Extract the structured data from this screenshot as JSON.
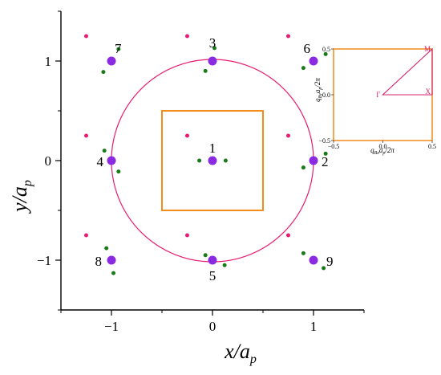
{
  "chart_data": [
    {
      "type": "scatter",
      "xlabel": "x/a",
      "xlabel_sub": "p",
      "ylabel": "y/a",
      "ylabel_sub": "p",
      "xlim": [
        -1.5,
        1.5
      ],
      "ylim": [
        -1.5,
        1.5
      ],
      "xticks": [
        -1,
        0,
        1
      ],
      "yticks": [
        -1,
        0,
        1
      ],
      "xtick_labels": [
        "−1",
        "0",
        "1"
      ],
      "ytick_labels": [
        "−1",
        "0",
        "1"
      ],
      "grid": false,
      "colors": {
        "sites": "#8a2be2",
        "pink_points": "#e61e73",
        "green_points": "#1a7a1a",
        "circle": "#e61e73",
        "square": "#f28c1a"
      },
      "circle": {
        "center": [
          0,
          0
        ],
        "radius": 1
      },
      "square": {
        "x": [
          -0.5,
          0.5
        ],
        "y": [
          -0.5,
          0.5
        ]
      },
      "sites": [
        {
          "label": "1",
          "x": 0,
          "y": 0
        },
        {
          "label": "2",
          "x": 1,
          "y": 0
        },
        {
          "label": "3",
          "x": 0,
          "y": 1
        },
        {
          "label": "4",
          "x": -1,
          "y": 0
        },
        {
          "label": "5",
          "x": 0,
          "y": -1
        },
        {
          "label": "6",
          "x": 1,
          "y": 1
        },
        {
          "label": "7",
          "x": -1,
          "y": 1
        },
        {
          "label": "8",
          "x": -1,
          "y": -1
        },
        {
          "label": "9",
          "x": 1,
          "y": -1
        }
      ],
      "pink_points": [
        {
          "x": -1.25,
          "y": 1.25
        },
        {
          "x": -0.25,
          "y": 1.25
        },
        {
          "x": 0.75,
          "y": 1.25
        },
        {
          "x": -1.25,
          "y": 0.25
        },
        {
          "x": -0.25,
          "y": 0.25
        },
        {
          "x": 0.75,
          "y": 0.25
        },
        {
          "x": -1.25,
          "y": -0.75
        },
        {
          "x": -0.25,
          "y": -0.75
        },
        {
          "x": 0.75,
          "y": -0.75
        }
      ],
      "green_points": [
        {
          "x": -0.13,
          "y": 0
        },
        {
          "x": 0.13,
          "y": 0
        },
        {
          "x": -0.07,
          "y": 0.9
        },
        {
          "x": 0.02,
          "y": 1.13
        },
        {
          "x": -0.07,
          "y": -0.95
        },
        {
          "x": 0.12,
          "y": -1.05
        },
        {
          "x": 0.9,
          "y": -0.07
        },
        {
          "x": 1.12,
          "y": 0.07
        },
        {
          "x": -1.07,
          "y": 0.1
        },
        {
          "x": -0.93,
          "y": -0.11
        },
        {
          "x": -0.93,
          "y": 1.12
        },
        {
          "x": -1.08,
          "y": 0.89
        },
        {
          "x": 0.9,
          "y": 0.93
        },
        {
          "x": 1.12,
          "y": 1.07
        },
        {
          "x": -1.05,
          "y": -0.88
        },
        {
          "x": -0.98,
          "y": -1.13
        },
        {
          "x": 0.9,
          "y": -0.93
        },
        {
          "x": 1.1,
          "y": -1.08
        }
      ]
    },
    {
      "type": "line",
      "xlabel": "q",
      "xlabel_sub": "Bx",
      "xlabel_mid": "a",
      "xlabel_mid_sub": "p",
      "xlabel_tail": "/2π",
      "ylabel": "q",
      "ylabel_sub": "By",
      "ylabel_mid": "a",
      "ylabel_mid_sub": "p",
      "ylabel_tail": "/2π",
      "xlim": [
        -0.5,
        0.5
      ],
      "ylim": [
        -0.5,
        0.5
      ],
      "xtick_labels": [
        "−0.5",
        "0.0",
        "0.5"
      ],
      "ytick_labels": [
        "0.5",
        "0.0",
        "−0.5"
      ],
      "path": [
        {
          "label": "Γ",
          "x": 0,
          "y": 0
        },
        {
          "label": "X",
          "x": 0.5,
          "y": 0
        },
        {
          "label": "M",
          "x": 0.5,
          "y": 0.5
        }
      ],
      "colors": {
        "path": "#d6226f",
        "frame": "#f28c1a"
      }
    }
  ]
}
